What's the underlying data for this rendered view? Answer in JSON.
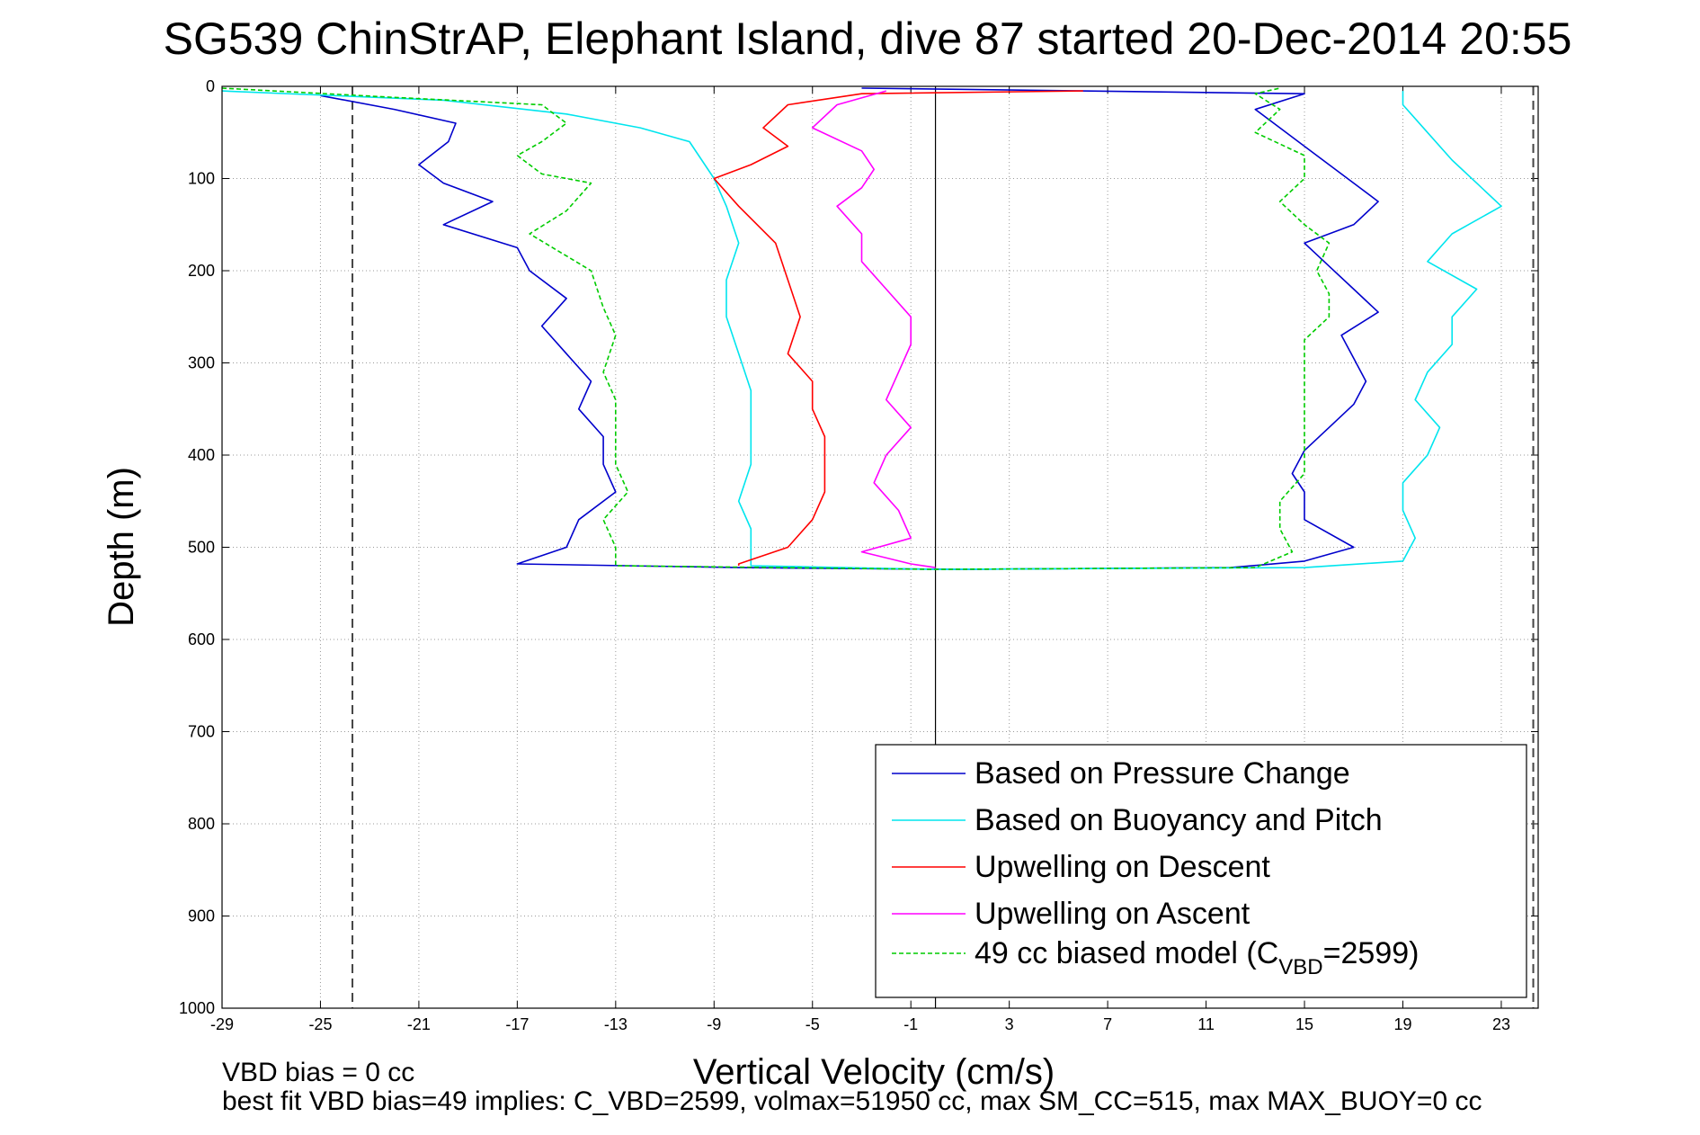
{
  "chart_data": {
    "type": "line",
    "title": "SG539 ChinStrAP, Elephant Island, dive 87 started 20-Dec-2014 20:55",
    "xlabel": "Vertical Velocity (cm/s)",
    "ylabel": "Depth (m)",
    "xlim": [
      -29,
      24.5
    ],
    "ylim": [
      1000,
      0
    ],
    "y_reversed": true,
    "grid": true,
    "xticks": [
      -29,
      -25,
      -21,
      -17,
      -13,
      -9,
      -5,
      -1,
      3,
      7,
      11,
      15,
      19,
      23
    ],
    "yticks": [
      0,
      100,
      200,
      300,
      400,
      500,
      600,
      700,
      800,
      900,
      1000
    ],
    "vertical_lines": [
      {
        "x": -23.7,
        "style": "dashed",
        "color": "#444444"
      },
      {
        "x": 24.3,
        "style": "dashed",
        "color": "#444444"
      },
      {
        "x": 0,
        "style": "solid",
        "color": "#000000"
      }
    ],
    "legend_position": "bottom-right",
    "series": [
      {
        "name": "Based on Pressure Change",
        "color": "#0000cc",
        "style": "solid",
        "points": [
          [
            -25,
            10
          ],
          [
            -22,
            25
          ],
          [
            -19.5,
            40
          ],
          [
            -19.8,
            60
          ],
          [
            -21,
            85
          ],
          [
            -20,
            105
          ],
          [
            -18,
            125
          ],
          [
            -20,
            150
          ],
          [
            -17,
            175
          ],
          [
            -16.5,
            200
          ],
          [
            -15,
            230
          ],
          [
            -16,
            260
          ],
          [
            -15,
            290
          ],
          [
            -14,
            320
          ],
          [
            -14.5,
            350
          ],
          [
            -13.5,
            380
          ],
          [
            -13.5,
            410
          ],
          [
            -13,
            440
          ],
          [
            -14.5,
            470
          ],
          [
            -15,
            500
          ],
          [
            -17,
            518
          ],
          [
            -8,
            522
          ],
          [
            1,
            524
          ],
          [
            12,
            522
          ],
          [
            15,
            515
          ],
          [
            17,
            500
          ],
          [
            15,
            470
          ],
          [
            15,
            440
          ],
          [
            14.5,
            420
          ],
          [
            15,
            395
          ],
          [
            16,
            370
          ],
          [
            17,
            345
          ],
          [
            17.5,
            320
          ],
          [
            17,
            295
          ],
          [
            16.5,
            270
          ],
          [
            18,
            245
          ],
          [
            17,
            220
          ],
          [
            16,
            195
          ],
          [
            15,
            170
          ],
          [
            17,
            150
          ],
          [
            18,
            125
          ],
          [
            17,
            105
          ],
          [
            16,
            85
          ],
          [
            15,
            65
          ],
          [
            14,
            45
          ],
          [
            13,
            25
          ],
          [
            15,
            8
          ],
          [
            -3,
            2
          ]
        ]
      },
      {
        "name": "Based on Buoyancy and Pitch",
        "color": "#00e5ee",
        "style": "solid",
        "points": [
          [
            -29,
            5
          ],
          [
            -20,
            15
          ],
          [
            -15,
            30
          ],
          [
            -12,
            45
          ],
          [
            -10,
            60
          ],
          [
            -9.5,
            80
          ],
          [
            -9,
            100
          ],
          [
            -8.5,
            130
          ],
          [
            -8,
            170
          ],
          [
            -8.5,
            210
          ],
          [
            -8.5,
            250
          ],
          [
            -8,
            290
          ],
          [
            -7.5,
            330
          ],
          [
            -7.5,
            370
          ],
          [
            -7.5,
            410
          ],
          [
            -8,
            450
          ],
          [
            -7.5,
            480
          ],
          [
            -7.5,
            505
          ],
          [
            -7.5,
            520
          ],
          [
            0,
            524
          ],
          [
            15,
            522
          ],
          [
            19,
            515
          ],
          [
            19.5,
            490
          ],
          [
            19,
            460
          ],
          [
            19,
            430
          ],
          [
            20,
            400
          ],
          [
            20.5,
            370
          ],
          [
            19.5,
            340
          ],
          [
            20,
            310
          ],
          [
            21,
            280
          ],
          [
            21,
            250
          ],
          [
            22,
            220
          ],
          [
            20,
            190
          ],
          [
            21,
            160
          ],
          [
            23,
            130
          ],
          [
            22,
            105
          ],
          [
            21,
            80
          ],
          [
            20,
            50
          ],
          [
            19,
            20
          ],
          [
            19,
            5
          ]
        ]
      },
      {
        "name": "Upwelling on Descent",
        "color": "#ff0000",
        "style": "solid",
        "points": [
          [
            6,
            5
          ],
          [
            -3,
            8
          ],
          [
            -6,
            20
          ],
          [
            -7,
            45
          ],
          [
            -6,
            65
          ],
          [
            -7.5,
            85
          ],
          [
            -9,
            100
          ],
          [
            -8,
            130
          ],
          [
            -6.5,
            170
          ],
          [
            -6,
            210
          ],
          [
            -5.5,
            250
          ],
          [
            -6,
            290
          ],
          [
            -5,
            320
          ],
          [
            -5,
            350
          ],
          [
            -4.5,
            380
          ],
          [
            -4.5,
            410
          ],
          [
            -4.5,
            440
          ],
          [
            -5,
            470
          ],
          [
            -6,
            500
          ],
          [
            -8,
            518
          ],
          [
            -8,
            520
          ]
        ]
      },
      {
        "name": "Upwelling on Ascent",
        "color": "#ff00ff",
        "style": "solid",
        "points": [
          [
            -2,
            5
          ],
          [
            -4,
            20
          ],
          [
            -5,
            45
          ],
          [
            -3,
            70
          ],
          [
            -2.5,
            90
          ],
          [
            -3,
            110
          ],
          [
            -4,
            130
          ],
          [
            -3,
            160
          ],
          [
            -3,
            190
          ],
          [
            -2,
            220
          ],
          [
            -1,
            250
          ],
          [
            -1,
            280
          ],
          [
            -1.5,
            310
          ],
          [
            -2,
            340
          ],
          [
            -1,
            370
          ],
          [
            -2,
            400
          ],
          [
            -2.5,
            430
          ],
          [
            -1.5,
            460
          ],
          [
            -1,
            490
          ],
          [
            -3,
            505
          ],
          [
            -1,
            518
          ],
          [
            0,
            522
          ]
        ]
      },
      {
        "name": "49 cc biased model (C_VBD=2599)",
        "color": "#00cc00",
        "style": "dashed",
        "points": [
          [
            -29,
            2
          ],
          [
            -22,
            12
          ],
          [
            -16,
            20
          ],
          [
            -15,
            40
          ],
          [
            -16,
            60
          ],
          [
            -17,
            75
          ],
          [
            -16,
            95
          ],
          [
            -14,
            105
          ],
          [
            -15,
            135
          ],
          [
            -16.5,
            160
          ],
          [
            -14,
            200
          ],
          [
            -13.5,
            240
          ],
          [
            -13,
            270
          ],
          [
            -13.5,
            310
          ],
          [
            -13,
            340
          ],
          [
            -13,
            380
          ],
          [
            -13,
            410
          ],
          [
            -12.5,
            440
          ],
          [
            -13.5,
            470
          ],
          [
            -13,
            500
          ],
          [
            -13,
            520
          ],
          [
            0,
            524
          ],
          [
            13,
            522
          ],
          [
            14.5,
            505
          ],
          [
            14,
            480
          ],
          [
            14,
            450
          ],
          [
            15,
            420
          ],
          [
            15,
            390
          ],
          [
            15,
            360
          ],
          [
            15,
            330
          ],
          [
            15,
            300
          ],
          [
            15,
            275
          ],
          [
            16,
            250
          ],
          [
            16,
            225
          ],
          [
            15.5,
            200
          ],
          [
            16,
            170
          ],
          [
            15,
            150
          ],
          [
            14,
            125
          ],
          [
            15,
            100
          ],
          [
            15,
            75
          ],
          [
            13,
            50
          ],
          [
            14,
            25
          ],
          [
            13,
            8
          ],
          [
            14,
            2
          ]
        ]
      }
    ],
    "legend_subscript": "VBD",
    "legend_last_prefix": "49 cc biased model (C",
    "legend_last_suffix": "=2599)"
  },
  "footer": {
    "line1": "VBD bias = 0 cc",
    "line2": "best fit VBD bias=49 implies: C_VBD=2599, volmax=51950 cc, max SM_CC=515, max MAX_BUOY=0 cc"
  }
}
